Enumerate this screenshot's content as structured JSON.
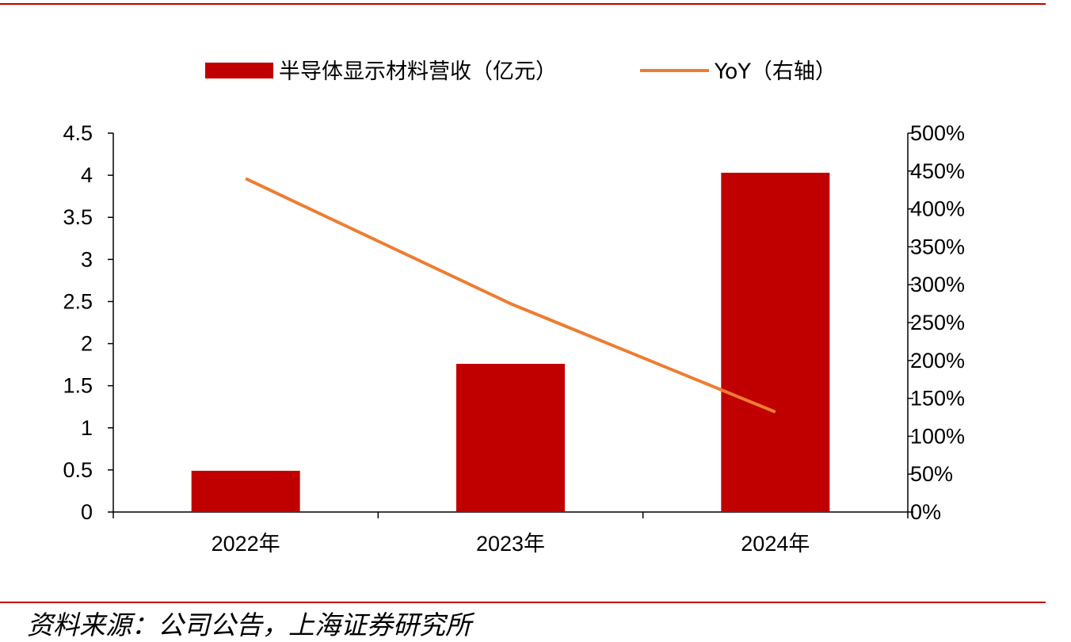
{
  "chart_data": {
    "type": "bar+line",
    "categories": [
      "2022年",
      "2023年",
      "2024年"
    ],
    "series": [
      {
        "name": "半导体显示材料营收（亿元）",
        "type": "bar",
        "axis": "left",
        "values": [
          0.49,
          1.76,
          4.03
        ],
        "color": "#c00000"
      },
      {
        "name": "YoY（右轴）",
        "type": "line",
        "axis": "right",
        "values": [
          4.4,
          2.75,
          1.32
        ],
        "color": "#ed7d31"
      }
    ],
    "y_left": {
      "range": [
        0,
        4.5
      ],
      "ticks": [
        "0",
        "0.5",
        "1",
        "1.5",
        "2",
        "2.5",
        "3",
        "3.5",
        "4",
        "4.5"
      ]
    },
    "y_right": {
      "range": [
        0,
        5
      ],
      "ticks": [
        "0%",
        "50%",
        "100%",
        "150%",
        "200%",
        "250%",
        "300%",
        "350%",
        "400%",
        "450%",
        "500%"
      ]
    },
    "grid": false,
    "legend_position": "top"
  },
  "source": "资料来源：公司公告，上海证券研究所",
  "colors": {
    "rule": "#c00000",
    "bar": "#c00000",
    "line": "#ed7d31"
  }
}
